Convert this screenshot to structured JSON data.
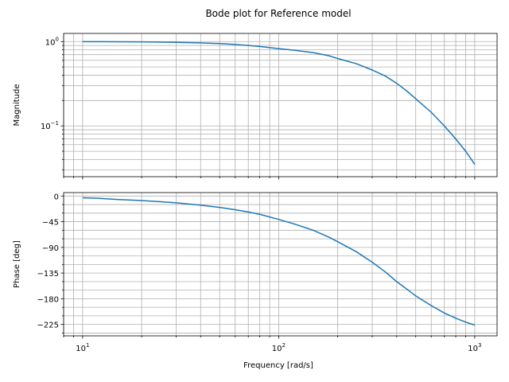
{
  "chart_data": {
    "type": "line",
    "title": "Bode plot for Reference model",
    "xlabel": "Frequency [rad/s]",
    "xscale": "log",
    "xlim": [
      8,
      1300
    ],
    "x_ticks": [
      10,
      100,
      1000
    ],
    "x_tick_labels": [
      {
        "base": "10",
        "exp": "1"
      },
      {
        "base": "10",
        "exp": "2"
      },
      {
        "base": "10",
        "exp": "3"
      }
    ],
    "grid": true,
    "color": "#1f77b4",
    "x": [
      10,
      12,
      15,
      20,
      25,
      30,
      40,
      50,
      60,
      70,
      80,
      100,
      120,
      150,
      180,
      200,
      250,
      300,
      350,
      400,
      450,
      500,
      600,
      700,
      800,
      900,
      1000
    ],
    "panels": [
      {
        "id": "magnitude",
        "ylabel": "Magnitude",
        "yscale": "log",
        "ylim": [
          0.025,
          1.25
        ],
        "y_ticks": [
          0.1,
          1
        ],
        "y_tick_labels": [
          {
            "base": "10",
            "exp": "−1"
          },
          {
            "base": "10",
            "exp": "0"
          }
        ],
        "series": [
          {
            "values": [
              0.998,
              0.997,
              0.995,
              0.991,
              0.986,
              0.98,
              0.965,
              0.947,
              0.925,
              0.9,
              0.875,
              0.825,
              0.79,
              0.74,
              0.68,
              0.63,
              0.545,
              0.46,
              0.39,
              0.32,
              0.26,
              0.21,
              0.145,
              0.1,
              0.07,
              0.05,
              0.035
            ]
          }
        ]
      },
      {
        "id": "phase",
        "ylabel": "Phase [deg]",
        "yscale": "linear",
        "ylim": [
          -245,
          6
        ],
        "y_ticks": [
          0,
          -45,
          -90,
          -135,
          -180,
          -225
        ],
        "y_tick_labels": [
          "0",
          "−45",
          "−90",
          "−135",
          "−180",
          "−225"
        ],
        "series": [
          {
            "values": [
              -3,
              -4,
              -6,
              -8,
              -10,
              -12,
              -16,
              -20,
              -24,
              -28,
              -32,
              -41,
              -49,
              -60,
              -72,
              -80,
              -98,
              -116,
              -133,
              -150,
              -163,
              -175,
              -192,
              -205,
              -214,
              -221,
              -226
            ]
          }
        ]
      }
    ]
  }
}
